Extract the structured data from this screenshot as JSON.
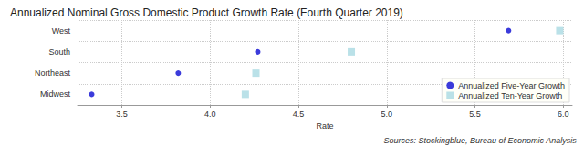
{
  "chart_data": {
    "type": "scatter",
    "title": "Annualized Nominal Gross Domestic Product Growth Rate (Fourth Quarter 2019)",
    "orientation": "horizontal",
    "categories": [
      "West",
      "South",
      "Northeast",
      "Midwest"
    ],
    "series": [
      {
        "name": "Annualized Five-Year Growth",
        "color": "#0a0ad2",
        "marker": "circle",
        "values": [
          5.69,
          4.27,
          3.82,
          3.33
        ]
      },
      {
        "name": "Annualized Ten-Year Growth",
        "color": "#a9d9e2",
        "marker": "square",
        "values": [
          5.98,
          4.8,
          4.26,
          4.2
        ]
      }
    ],
    "xlabel": "Rate",
    "xlim": [
      3.25,
      6.05
    ],
    "xticks": [
      3.5,
      {
        "value": 4,
        "label": "4.0"
      },
      4.5,
      {
        "value": 5,
        "label": "5.0"
      },
      5.5,
      {
        "value": 6,
        "label": "6.0"
      }
    ],
    "grid": true,
    "legend": "lower right",
    "annotations": [
      "Sources: Stockingblue, Bureau of Economic Analysis"
    ]
  }
}
